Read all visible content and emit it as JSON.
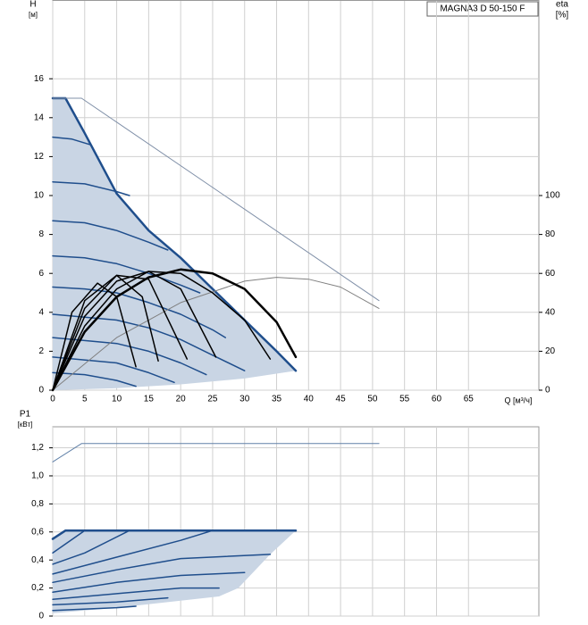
{
  "chart_data": [
    {
      "type": "line",
      "ylabel": "H",
      "yunit": "[м]",
      "y2label": "eta",
      "y2unit": "[%]",
      "xlabel": "Q [м³/ч]",
      "title": "MAGNA3 D 50-150 F",
      "xlim": [
        0,
        76
      ],
      "xticks": [
        0,
        5,
        10,
        15,
        20,
        25,
        30,
        35,
        40,
        45,
        50,
        55,
        60,
        65
      ],
      "ylim": [
        0,
        20
      ],
      "yticks": [
        0,
        2,
        4,
        6,
        8,
        10,
        12,
        14,
        16
      ],
      "y2lim": [
        0,
        200
      ],
      "y2ticks": [
        0,
        20,
        40,
        60,
        80,
        100
      ],
      "grid": true,
      "series": [
        {
          "fill": "#c9d5e4",
          "x": [
            0,
            2,
            5,
            10,
            15,
            20,
            25,
            30,
            35,
            38,
            30,
            20,
            10,
            0
          ],
          "values": [
            15,
            15,
            13.2,
            10.1,
            8.2,
            6.8,
            5.2,
            3.6,
            2,
            1,
            0.6,
            0.3,
            0.1,
            0
          ]
        },
        {
          "color": "#1f4e8c",
          "width": 1.5,
          "x": [
            0,
            3,
            6
          ],
          "values": [
            13,
            12.9,
            12.6
          ]
        },
        {
          "color": "#1f4e8c",
          "width": 1.5,
          "x": [
            0,
            5,
            10,
            12
          ],
          "values": [
            10.7,
            10.6,
            10.2,
            10
          ]
        },
        {
          "color": "#1f4e8c",
          "width": 1.5,
          "x": [
            0,
            5,
            10,
            15,
            18
          ],
          "values": [
            8.7,
            8.6,
            8.2,
            7.6,
            7.2
          ]
        },
        {
          "color": "#1f4e8c",
          "width": 1.5,
          "x": [
            0,
            5,
            10,
            15,
            20,
            23
          ],
          "values": [
            6.9,
            6.8,
            6.5,
            6,
            5.4,
            5
          ]
        },
        {
          "color": "#1f4e8c",
          "width": 1.5,
          "x": [
            0,
            5,
            10,
            15,
            20,
            25,
            27
          ],
          "values": [
            5.3,
            5.2,
            5,
            4.5,
            3.9,
            3.1,
            2.7
          ]
        },
        {
          "color": "#1f4e8c",
          "width": 1.5,
          "x": [
            0,
            10,
            15,
            20,
            25,
            30
          ],
          "values": [
            3.9,
            3.6,
            3.2,
            2.6,
            1.8,
            1
          ]
        },
        {
          "color": "#1f4e8c",
          "width": 1.5,
          "x": [
            0,
            10,
            15,
            20,
            24
          ],
          "values": [
            2.7,
            2.4,
            2,
            1.4,
            0.8
          ]
        },
        {
          "color": "#1f4e8c",
          "width": 1.5,
          "x": [
            0,
            10,
            15,
            19
          ],
          "values": [
            1.7,
            1.4,
            0.9,
            0.4
          ]
        },
        {
          "color": "#1f4e8c",
          "width": 1.5,
          "x": [
            0,
            5,
            10,
            13
          ],
          "values": [
            0.9,
            0.8,
            0.5,
            0.2
          ]
        },
        {
          "color": "#1f4e8c",
          "width": 2.5,
          "x": [
            0,
            2,
            5,
            10,
            15,
            20,
            25,
            30,
            35,
            38
          ],
          "values": [
            15,
            15,
            13.2,
            10.1,
            8.2,
            6.8,
            5.2,
            3.6,
            2,
            1
          ]
        },
        {
          "color": "#8090a8",
          "width": 1,
          "x": [
            0,
            4.5,
            51
          ],
          "values": [
            15,
            15,
            4.6
          ]
        },
        {
          "color": "#808080",
          "width": 1,
          "axis": "y2",
          "x": [
            0,
            10,
            20,
            30,
            35,
            40,
            45,
            51
          ],
          "values": [
            0,
            27,
            45,
            56,
            58,
            57,
            53,
            42
          ]
        },
        {
          "color": "#000000",
          "width": 2.5,
          "axis": "y2",
          "x": [
            0,
            5,
            10,
            15,
            20,
            25,
            30,
            35,
            38
          ],
          "values": [
            0,
            30,
            48,
            58,
            62,
            60,
            52,
            35,
            17
          ]
        },
        {
          "color": "#000000",
          "width": 1.5,
          "axis": "y2",
          "x": [
            0,
            5,
            10,
            15,
            20,
            25,
            30,
            34
          ],
          "values": [
            0,
            33,
            52,
            61,
            60,
            50,
            36,
            16
          ]
        },
        {
          "color": "#000000",
          "width": 1.5,
          "axis": "y2",
          "x": [
            0,
            5,
            10,
            15,
            20,
            25.5
          ],
          "values": [
            0,
            38,
            56,
            61,
            52,
            17
          ]
        },
        {
          "color": "#000000",
          "width": 1.5,
          "axis": "y2",
          "x": [
            0,
            5,
            10,
            15,
            21
          ],
          "values": [
            0,
            42,
            59,
            57,
            16
          ]
        },
        {
          "color": "#000000",
          "width": 1.5,
          "axis": "y2",
          "x": [
            0,
            5,
            10,
            14,
            16.5
          ],
          "values": [
            0,
            46,
            59,
            48,
            15
          ]
        },
        {
          "color": "#000000",
          "width": 1.5,
          "axis": "y2",
          "x": [
            0,
            3,
            7,
            10,
            13
          ],
          "values": [
            0,
            40,
            55,
            48,
            12
          ]
        }
      ]
    },
    {
      "type": "line",
      "ylabel": "P1",
      "yunit": "[кВт]",
      "xlim": [
        0,
        76
      ],
      "ylim": [
        0,
        1.35
      ],
      "yticks": [
        0,
        {
          "value": 0.2,
          "label": "0,2"
        },
        {
          "value": 0.4,
          "label": "0,4"
        },
        {
          "value": 0.6,
          "label": "0,6"
        },
        {
          "value": 0.8,
          "label": "0,8"
        },
        {
          "value": 1.0,
          "label": "1,0"
        },
        {
          "value": 1.2,
          "label": "1,2"
        }
      ],
      "grid": true,
      "series": [
        {
          "fill": "#c9d5e4",
          "x": [
            0,
            2,
            38,
            34,
            29,
            26,
            20,
            10,
            0
          ],
          "values": [
            0.55,
            0.61,
            0.61,
            0.44,
            0.2,
            0.14,
            0.11,
            0.06,
            0.02
          ]
        },
        {
          "color": "#1f4e8c",
          "width": 1.5,
          "x": [
            0,
            5
          ],
          "values": [
            0.45,
            0.61
          ]
        },
        {
          "color": "#1f4e8c",
          "width": 1.5,
          "x": [
            0,
            5,
            12
          ],
          "values": [
            0.37,
            0.45,
            0.61
          ]
        },
        {
          "color": "#1f4e8c",
          "width": 1.5,
          "x": [
            0,
            10,
            20,
            25
          ],
          "values": [
            0.3,
            0.42,
            0.54,
            0.61
          ]
        },
        {
          "color": "#1f4e8c",
          "width": 1.5,
          "x": [
            0,
            10,
            20,
            34
          ],
          "values": [
            0.24,
            0.33,
            0.41,
            0.44
          ]
        },
        {
          "color": "#1f4e8c",
          "width": 1.5,
          "x": [
            0,
            10,
            20,
            30
          ],
          "values": [
            0.17,
            0.24,
            0.29,
            0.31
          ]
        },
        {
          "color": "#1f4e8c",
          "width": 1.5,
          "x": [
            0,
            10,
            20,
            26
          ],
          "values": [
            0.12,
            0.16,
            0.2,
            0.2
          ]
        },
        {
          "color": "#1f4e8c",
          "width": 1.5,
          "x": [
            0,
            10,
            18
          ],
          "values": [
            0.08,
            0.1,
            0.13
          ]
        },
        {
          "color": "#1f4e8c",
          "width": 1.5,
          "x": [
            0,
            10,
            13
          ],
          "values": [
            0.04,
            0.06,
            0.07
          ]
        },
        {
          "color": "#1f4e8c",
          "width": 2.5,
          "x": [
            0,
            2,
            38
          ],
          "values": [
            0.55,
            0.61,
            0.61
          ]
        },
        {
          "color": "#6080a8",
          "width": 1,
          "x": [
            0,
            4.5,
            51
          ],
          "values": [
            1.1,
            1.23,
            1.23
          ]
        }
      ]
    }
  ]
}
